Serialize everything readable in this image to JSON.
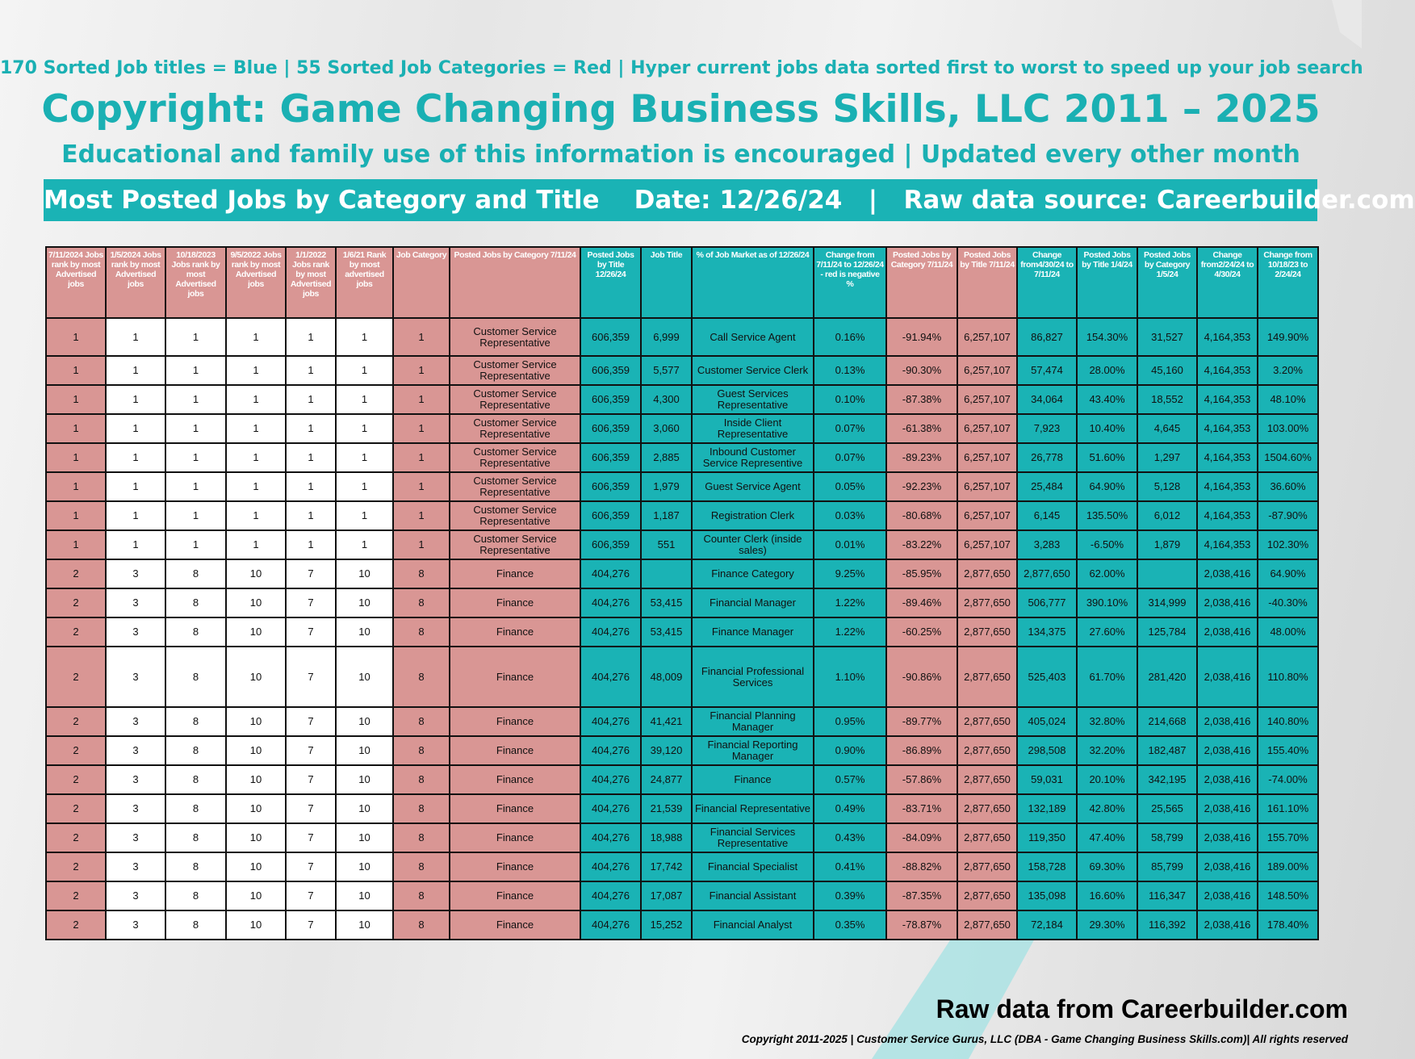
{
  "header": {
    "top_note": "170 Sorted Job titles = Blue | 55 Sorted Job Categories = Red | Hyper current jobs data sorted first to worst to speed up your job search",
    "title": "Copyright: Game Changing Business Skills, LLC 2011 – 2025",
    "subtitle": "Educational and family use of this information is encouraged | Updated every other month",
    "banner": "Most Posted Jobs by Category and Title    Date: 12/26/24   |   Raw data source: Careerbuilder.com"
  },
  "table": {
    "columns": [
      "7/11/2024 Jobs rank by most Advertised jobs",
      "1/5/2024 Jobs rank by most Advertised jobs",
      "10/18/2023 Jobs rank by most Advertised jobs",
      "9/5/2022 Jobs rank by most Advertised jobs",
      "1/1/2022 Jobs rank by most Advertised jobs",
      "1/6/21 Rank by most advertised jobs",
      "Job Category",
      "Posted Jobs by Category 7/11/24",
      "Posted Jobs by Title 12/26/24",
      "Job Title",
      "% of Job Market as of 12/26/24",
      "Change from 7/11/24 to 12/26/24 - red is negative %",
      "Posted Jobs by Category 7/11/24",
      "Posted Jobs by Title 7/11/24",
      "Change from4/30/24 to 7/11/24",
      "Posted Jobs by Title 1/4/24",
      "Posted Jobs by Category 1/5/24",
      "Change from2/24/24 to 4/30/24",
      "Change from 10/18/23 to 2/24/24"
    ],
    "rows": [
      [
        1,
        1,
        1,
        1,
        1,
        1,
        1,
        "Customer Service Representative",
        "606,359",
        "6,999",
        "Call Service Agent",
        "0.16%",
        "-91.94%",
        "6,257,107",
        "86,827",
        "154.30%",
        "31,527",
        "4,164,353",
        "149.90%"
      ],
      [
        1,
        1,
        1,
        1,
        1,
        1,
        1,
        "Customer Service Representative",
        "606,359",
        "5,577",
        "Customer Service Clerk",
        "0.13%",
        "-90.30%",
        "6,257,107",
        "57,474",
        "28.00%",
        "45,160",
        "4,164,353",
        "3.20%"
      ],
      [
        1,
        1,
        1,
        1,
        1,
        1,
        1,
        "Customer Service Representative",
        "606,359",
        "4,300",
        "Guest Services Representative",
        "0.10%",
        "-87.38%",
        "6,257,107",
        "34,064",
        "43.40%",
        "18,552",
        "4,164,353",
        "48.10%"
      ],
      [
        1,
        1,
        1,
        1,
        1,
        1,
        1,
        "Customer Service Representative",
        "606,359",
        "3,060",
        "Inside Client Representative",
        "0.07%",
        "-61.38%",
        "6,257,107",
        "7,923",
        "10.40%",
        "4,645",
        "4,164,353",
        "103.00%"
      ],
      [
        1,
        1,
        1,
        1,
        1,
        1,
        1,
        "Customer Service Representative",
        "606,359",
        "2,885",
        "Inbound Customer Service Representive",
        "0.07%",
        "-89.23%",
        "6,257,107",
        "26,778",
        "51.60%",
        "1,297",
        "4,164,353",
        "1504.60%"
      ],
      [
        1,
        1,
        1,
        1,
        1,
        1,
        1,
        "Customer Service Representative",
        "606,359",
        "1,979",
        "Guest Service Agent",
        "0.05%",
        "-92.23%",
        "6,257,107",
        "25,484",
        "64.90%",
        "5,128",
        "4,164,353",
        "36.60%"
      ],
      [
        1,
        1,
        1,
        1,
        1,
        1,
        1,
        "Customer Service Representative",
        "606,359",
        "1,187",
        "Registration Clerk",
        "0.03%",
        "-80.68%",
        "6,257,107",
        "6,145",
        "135.50%",
        "6,012",
        "4,164,353",
        "-87.90%"
      ],
      [
        1,
        1,
        1,
        1,
        1,
        1,
        1,
        "Customer Service Representative",
        "606,359",
        "551",
        "Counter Clerk (inside sales)",
        "0.01%",
        "-83.22%",
        "6,257,107",
        "3,283",
        "-6.50%",
        "1,879",
        "4,164,353",
        "102.30%"
      ],
      [
        2,
        3,
        8,
        10,
        7,
        10,
        8,
        "Finance",
        "404,276",
        null,
        "Finance Category",
        "9.25%",
        "-85.95%",
        "2,877,650",
        "2,877,650",
        "62.00%",
        null,
        "2,038,416",
        "64.90%"
      ],
      [
        2,
        3,
        8,
        10,
        7,
        10,
        8,
        "Finance",
        "404,276",
        "53,415",
        "Financial Manager",
        "1.22%",
        "-89.46%",
        "2,877,650",
        "506,777",
        "390.10%",
        "314,999",
        "2,038,416",
        "-40.30%"
      ],
      [
        2,
        3,
        8,
        10,
        7,
        10,
        8,
        "Finance",
        "404,276",
        "53,415",
        "Finance Manager",
        "1.22%",
        "-60.25%",
        "2,877,650",
        "134,375",
        "27.60%",
        "125,784",
        "2,038,416",
        "48.00%"
      ],
      [
        2,
        3,
        8,
        10,
        7,
        10,
        8,
        "Finance",
        "404,276",
        "48,009",
        "Financial Professional Services",
        "1.10%",
        "-90.86%",
        "2,877,650",
        "525,403",
        "61.70%",
        "281,420",
        "2,038,416",
        "110.80%"
      ],
      [
        2,
        3,
        8,
        10,
        7,
        10,
        8,
        "Finance",
        "404,276",
        "41,421",
        "Financial Planning Manager",
        "0.95%",
        "-89.77%",
        "2,877,650",
        "405,024",
        "32.80%",
        "214,668",
        "2,038,416",
        "140.80%"
      ],
      [
        2,
        3,
        8,
        10,
        7,
        10,
        8,
        "Finance",
        "404,276",
        "39,120",
        "Financial Reporting Manager",
        "0.90%",
        "-86.89%",
        "2,877,650",
        "298,508",
        "32.20%",
        "182,487",
        "2,038,416",
        "155.40%"
      ],
      [
        2,
        3,
        8,
        10,
        7,
        10,
        8,
        "Finance",
        "404,276",
        "24,877",
        "Finance",
        "0.57%",
        "-57.86%",
        "2,877,650",
        "59,031",
        "20.10%",
        "342,195",
        "2,038,416",
        "-74.00%"
      ],
      [
        2,
        3,
        8,
        10,
        7,
        10,
        8,
        "Finance",
        "404,276",
        "21,539",
        "Financial Representative",
        "0.49%",
        "-83.71%",
        "2,877,650",
        "132,189",
        "42.80%",
        "25,565",
        "2,038,416",
        "161.10%"
      ],
      [
        2,
        3,
        8,
        10,
        7,
        10,
        8,
        "Finance",
        "404,276",
        "18,988",
        "Financial Services Representative",
        "0.43%",
        "-84.09%",
        "2,877,650",
        "119,350",
        "47.40%",
        "58,799",
        "2,038,416",
        "155.70%"
      ],
      [
        2,
        3,
        8,
        10,
        7,
        10,
        8,
        "Finance",
        "404,276",
        "17,742",
        "Financial Specialist",
        "0.41%",
        "-88.82%",
        "2,877,650",
        "158,728",
        "69.30%",
        "85,799",
        "2,038,416",
        "189.00%"
      ],
      [
        2,
        3,
        8,
        10,
        7,
        10,
        8,
        "Finance",
        "404,276",
        "17,087",
        "Financial Assistant",
        "0.39%",
        "-87.35%",
        "2,877,650",
        "135,098",
        "16.60%",
        "116,347",
        "2,038,416",
        "148.50%"
      ],
      [
        2,
        3,
        8,
        10,
        7,
        10,
        8,
        "Finance",
        "404,276",
        "15,252",
        "Financial Analyst",
        "0.35%",
        "-78.87%",
        "2,877,650",
        "72,184",
        "29.30%",
        "116,392",
        "2,038,416",
        "178.40%"
      ]
    ]
  },
  "footer": {
    "source": "Raw data from Careerbuilder.com",
    "copyright": "Copyright 2011-2025 | Customer Service Gurus, LLC (DBA - Game Changing Business Skills.com)| All rights reserved"
  }
}
